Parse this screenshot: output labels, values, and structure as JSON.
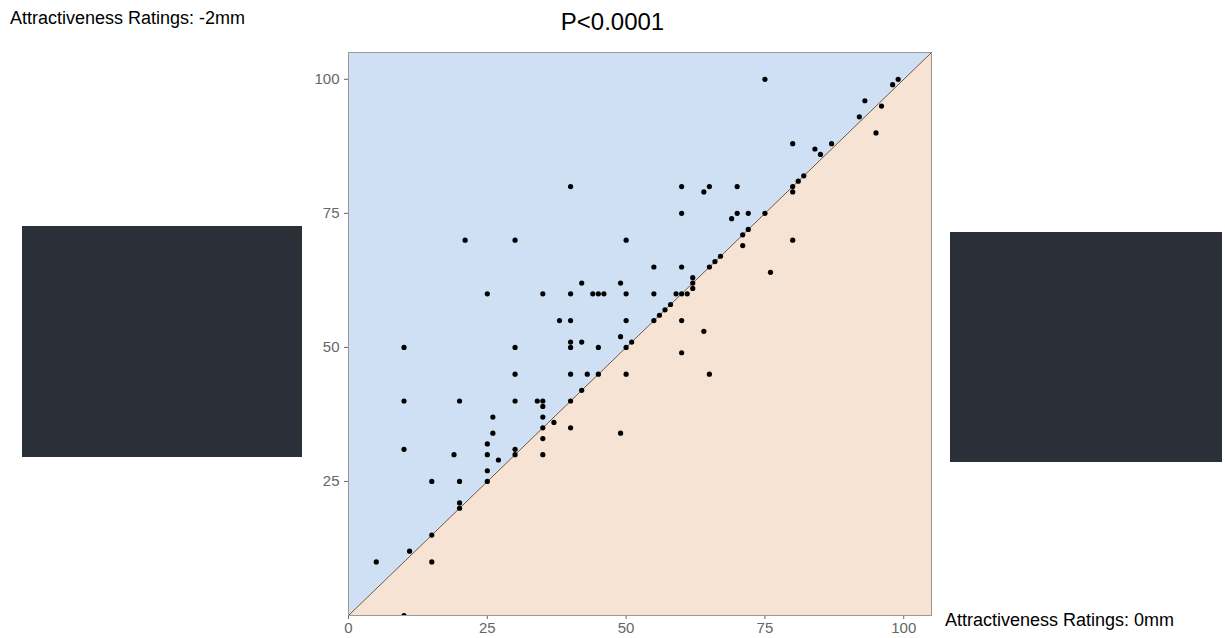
{
  "chart_data": {
    "type": "scatter",
    "title": "P<0.0001",
    "x_label": "Attractiveness Ratings: 0mm",
    "y_label": "Attractiveness Ratings: -2mm",
    "x": [
      5,
      10,
      10,
      10,
      10,
      11,
      15,
      15,
      15,
      19,
      20,
      20,
      20,
      20,
      21,
      25,
      25,
      25,
      25,
      25,
      26,
      26,
      27,
      30,
      30,
      30,
      30,
      30,
      30,
      34,
      35,
      35,
      35,
      35,
      35,
      35,
      35,
      37,
      38,
      40,
      40,
      40,
      40,
      40,
      40,
      40,
      40,
      42,
      42,
      42,
      43,
      44,
      45,
      45,
      45,
      46,
      49,
      49,
      49,
      50,
      50,
      50,
      50,
      50,
      51,
      55,
      55,
      55,
      56,
      57,
      58,
      59,
      60,
      60,
      60,
      60,
      60,
      60,
      61,
      62,
      62,
      62,
      64,
      64,
      65,
      65,
      65,
      66,
      67,
      69,
      70,
      70,
      71,
      71,
      72,
      72,
      75,
      75,
      76,
      80,
      80,
      80,
      80,
      81,
      82,
      84,
      85,
      87,
      92,
      93,
      95,
      96,
      98,
      99
    ],
    "values": [
      10,
      0,
      31,
      40,
      50,
      12,
      10,
      15,
      25,
      30,
      20,
      21,
      25,
      40,
      70,
      25,
      27,
      30,
      32,
      60,
      34,
      37,
      29,
      30,
      31,
      40,
      45,
      50,
      70,
      40,
      30,
      33,
      35,
      37,
      39,
      40,
      60,
      36,
      55,
      35,
      40,
      45,
      50,
      51,
      55,
      60,
      80,
      42,
      51,
      62,
      45,
      60,
      45,
      50,
      60,
      60,
      34,
      52,
      62,
      45,
      50,
      55,
      60,
      70,
      51,
      55,
      60,
      65,
      56,
      57,
      58,
      60,
      49,
      55,
      60,
      65,
      75,
      80,
      60,
      61,
      62,
      63,
      53,
      79,
      45,
      65,
      80,
      66,
      67,
      74,
      75,
      80,
      69,
      71,
      72,
      75,
      75,
      100,
      64,
      70,
      79,
      80,
      88,
      81,
      82,
      87,
      86,
      88,
      93,
      96,
      90,
      95,
      99,
      100
    ],
    "color": "#000000",
    "xlim": [
      0,
      105
    ],
    "ylim": [
      0,
      105
    ],
    "xticks": [
      0,
      25,
      50,
      75,
      100
    ],
    "yticks": [
      25,
      50,
      75,
      100
    ],
    "grid": false
  }
}
